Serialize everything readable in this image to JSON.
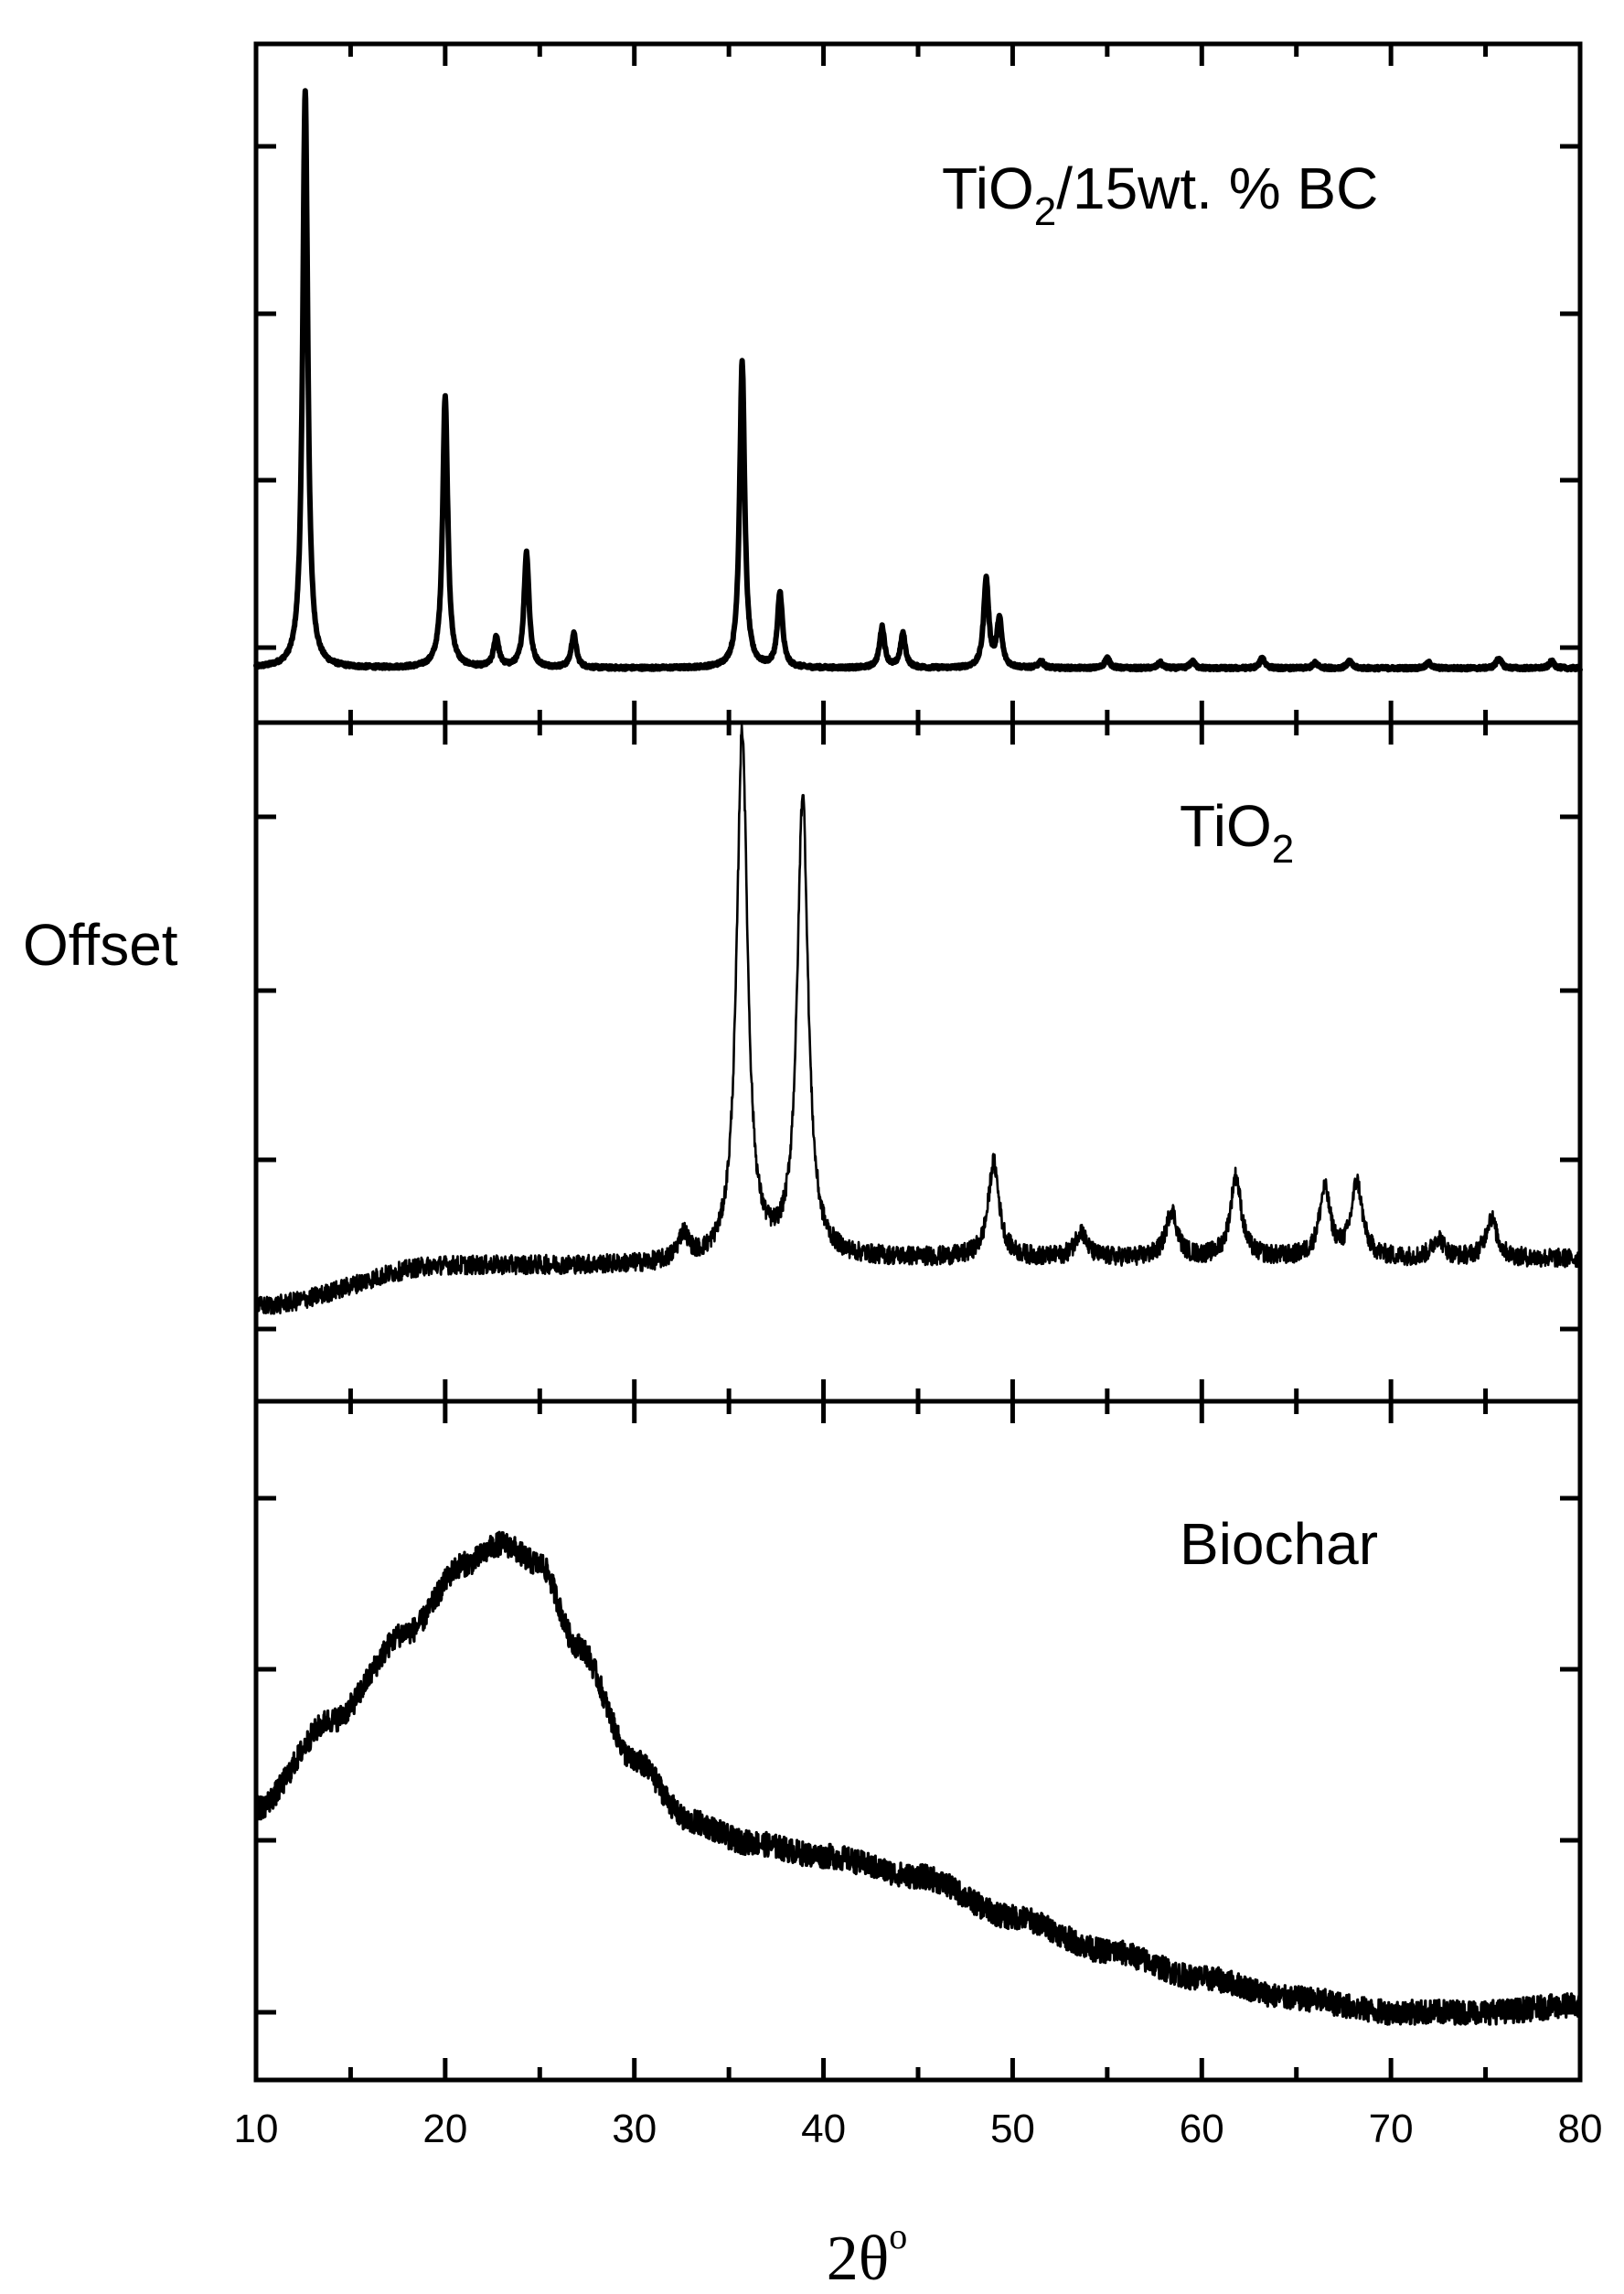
{
  "chart_data": {
    "type": "line",
    "ylabel": "Offset",
    "xlabel_main": "2θ",
    "xlabel_sup": "o",
    "xlim": [
      10,
      80
    ],
    "x_ticks": [
      "10",
      "20",
      "30",
      "40",
      "50",
      "60",
      "70",
      "80"
    ],
    "grid": false,
    "panels": [
      {
        "name_main": "TiO",
        "name_sub": "2",
        "name_tail": "/15wt. % BC",
        "ylim": [
          0,
          100
        ],
        "baseline": 8,
        "noise": 0.25,
        "peak_width": 0.16,
        "peaks": [
          [
            12.6,
            85
          ],
          [
            20.0,
            40
          ],
          [
            22.7,
            4.5
          ],
          [
            24.3,
            17
          ],
          [
            26.8,
            5
          ],
          [
            35.7,
            45
          ],
          [
            37.7,
            11
          ],
          [
            43.1,
            6
          ],
          [
            44.2,
            5
          ],
          [
            48.6,
            13
          ],
          [
            49.3,
            7
          ],
          [
            51.5,
            1
          ],
          [
            55.0,
            1.5
          ],
          [
            57.8,
            0.8
          ],
          [
            59.5,
            1
          ],
          [
            63.2,
            1.5
          ],
          [
            66.0,
            0.8
          ],
          [
            67.8,
            1
          ],
          [
            72.0,
            0.8
          ],
          [
            75.7,
            1.5
          ],
          [
            78.5,
            1
          ]
        ]
      },
      {
        "name_main": "TiO",
        "name_sub": "2",
        "name_tail": "",
        "ylim": [
          0,
          100
        ],
        "baseline_points": [
          [
            10,
            14
          ],
          [
            20,
            20
          ],
          [
            32,
            20
          ],
          [
            45,
            21
          ],
          [
            80,
            21
          ]
        ],
        "noise": 1.4,
        "peak_width": 0.35,
        "peaks": [
          [
            32.6,
            4
          ],
          [
            35.7,
            78
          ],
          [
            38.9,
            68
          ],
          [
            49.0,
            14
          ],
          [
            53.6,
            4
          ],
          [
            58.4,
            7
          ],
          [
            61.8,
            12
          ],
          [
            66.5,
            10
          ],
          [
            68.2,
            11
          ],
          [
            72.5,
            3
          ],
          [
            75.3,
            6
          ]
        ]
      },
      {
        "name_main": "Biochar",
        "name_sub": "",
        "name_tail": "",
        "ylim": [
          0,
          100
        ],
        "baseline_points": [
          [
            10,
            40
          ],
          [
            14,
            53
          ],
          [
            18,
            66
          ],
          [
            21,
            76
          ],
          [
            23,
            79
          ],
          [
            25,
            76
          ],
          [
            27,
            64
          ],
          [
            30,
            47
          ],
          [
            33,
            38
          ],
          [
            36,
            35
          ],
          [
            40,
            33
          ],
          [
            45,
            30
          ],
          [
            50,
            24
          ],
          [
            55,
            19
          ],
          [
            60,
            15
          ],
          [
            65,
            12
          ],
          [
            70,
            10
          ],
          [
            75,
            10
          ],
          [
            80,
            11
          ]
        ],
        "noise": 1.8,
        "peak_width": 0.3,
        "peaks": []
      }
    ]
  }
}
